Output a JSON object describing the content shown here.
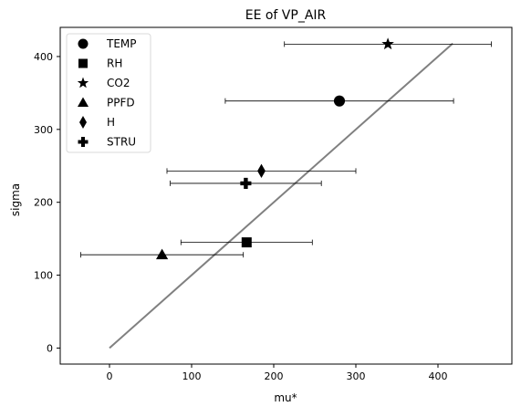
{
  "chart_data": {
    "type": "scatter",
    "title": "EE of VP_AIR",
    "xlabel": "mu*",
    "ylabel": "sigma",
    "xlim": [
      -60,
      490
    ],
    "ylim": [
      -22,
      440
    ],
    "xticks": [
      0,
      100,
      200,
      300,
      400
    ],
    "yticks": [
      0,
      100,
      200,
      300,
      400
    ],
    "grid": false,
    "legend_position": "top-left",
    "reference_line": {
      "x": [
        0,
        418
      ],
      "y": [
        0,
        418
      ],
      "color": "#808080"
    },
    "points_color": "#000000",
    "series": [
      {
        "name": "TEMP",
        "marker": "circle",
        "x": 280,
        "y": 339,
        "xerr": 139
      },
      {
        "name": "RH",
        "marker": "square",
        "x": 167,
        "y": 145,
        "xerr": 80
      },
      {
        "name": "CO2",
        "marker": "star",
        "x": 339,
        "y": 417,
        "xerr": 126
      },
      {
        "name": "PPFD",
        "marker": "triangle",
        "x": 64,
        "y": 128,
        "xerr": 99
      },
      {
        "name": "H",
        "marker": "diamond",
        "x": 185,
        "y": 243,
        "xerr": 115
      },
      {
        "name": "STRU",
        "marker": "plus",
        "x": 166,
        "y": 226,
        "xerr": 92
      }
    ]
  }
}
